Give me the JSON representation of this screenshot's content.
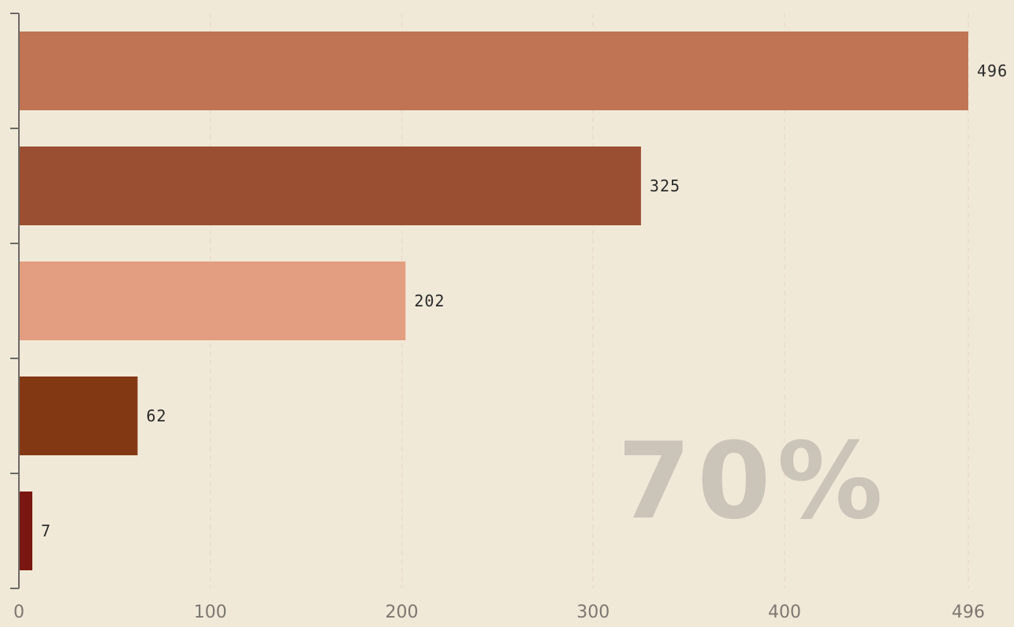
{
  "chart_data": {
    "type": "bar",
    "orientation": "horizontal",
    "categories": [
      "",
      "",
      "",
      "",
      ""
    ],
    "values": [
      496,
      325,
      202,
      62,
      7
    ],
    "colors": [
      "#c07454",
      "#9b4f32",
      "#e39e82",
      "#833814",
      "#7a1710"
    ],
    "data_labels": [
      "496",
      "325",
      "202",
      "62",
      "7"
    ],
    "x_ticks": [
      0,
      100,
      200,
      300,
      400,
      496
    ],
    "x_tick_labels": [
      "0",
      "100",
      "200",
      "300",
      "400",
      "496"
    ],
    "xlim": [
      0,
      496
    ],
    "title": "",
    "xlabel": "",
    "ylabel": "",
    "grid": "vertical dashed",
    "legend": "none",
    "annotation": "70%"
  },
  "colors": {
    "background": "#f1e9d8",
    "axis": "#6c6a66",
    "grid": "#eadcc8",
    "watermark": "#cbc4b8"
  }
}
